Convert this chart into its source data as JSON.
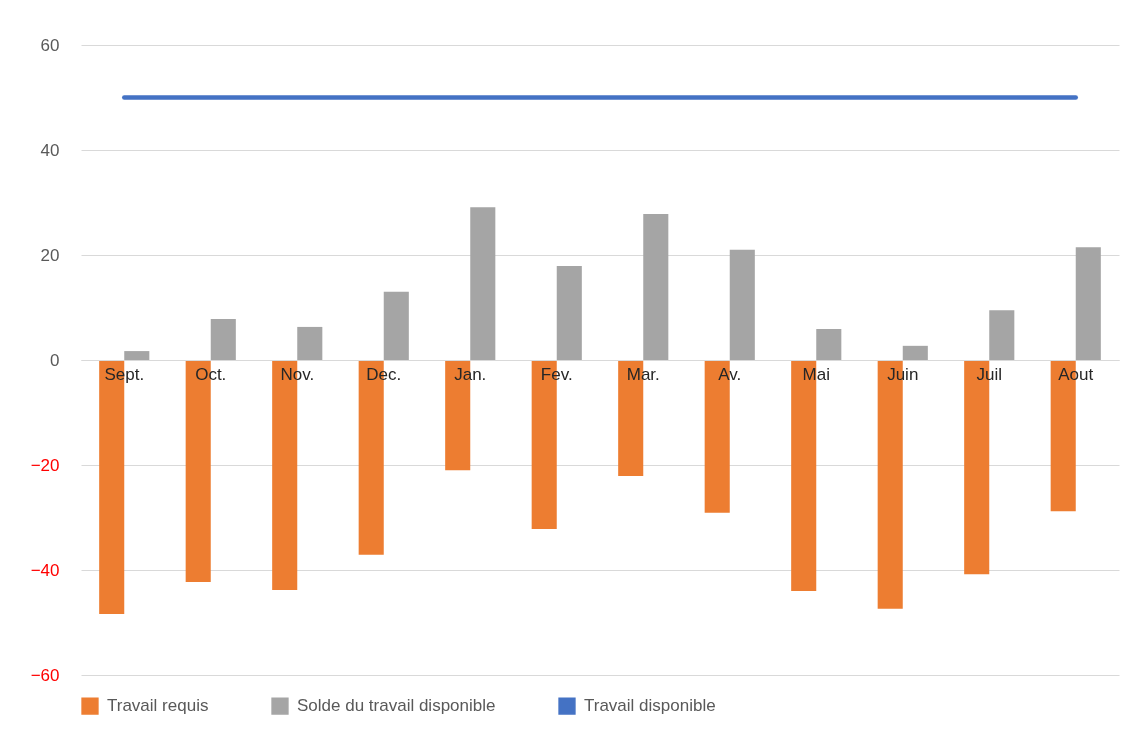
{
  "chart_data": {
    "type": "bar",
    "categories": [
      "Sept.",
      "Oct.",
      "Nov.",
      "Dec.",
      "Jan.",
      "Fev.",
      "Mar.",
      "Av.",
      "Mai",
      "Juin",
      "Juil",
      "Aout"
    ],
    "series": [
      {
        "name": "Travail requis",
        "color": "#ed7d31",
        "values": [
          -48.4,
          -42.3,
          -43.8,
          -37.1,
          -21,
          -32.2,
          -22.1,
          -29.1,
          -44,
          -47.4,
          -40.8,
          -28.8
        ]
      },
      {
        "name": "Solde du travail disponible",
        "color": "#a5a5a5",
        "values": [
          1.7,
          7.8,
          6.3,
          13,
          29.1,
          17.9,
          27.8,
          21,
          5.9,
          2.7,
          9.5,
          21.5
        ]
      },
      {
        "name": "Travail disponible",
        "type": "line",
        "color": "#4472c4",
        "values": [
          50,
          50,
          50,
          50,
          50,
          50,
          50,
          50,
          50,
          50,
          50,
          50
        ]
      }
    ],
    "ylim": [
      -60,
      60
    ],
    "yticks": [
      -60,
      -40,
      -20,
      0,
      20,
      40,
      60
    ],
    "grid": "y",
    "legend": "bottom"
  }
}
